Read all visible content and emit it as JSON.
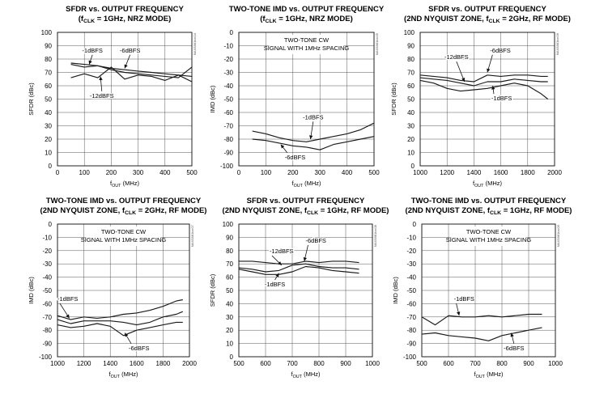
{
  "chart_data": [
    {
      "type": "line",
      "title_lines": [
        "SFDR vs. OUTPUT FREQUENCY",
        "(fCLK = 1GHz, NRZ MODE)"
      ],
      "xlabel": "fOUT (MHz)",
      "ylabel": "SFDR (dBc)",
      "xlim": [
        0,
        500
      ],
      "ylim": [
        0,
        100
      ],
      "xticks": [
        0,
        100,
        200,
        300,
        400,
        500
      ],
      "yticks": [
        0,
        10,
        20,
        30,
        40,
        50,
        60,
        70,
        80,
        90,
        100
      ],
      "grid": true,
      "side_tag": "MAX5881toc04",
      "note": [],
      "series": [
        {
          "x": [
            50,
            100,
            150,
            200,
            250,
            300,
            350,
            400,
            450,
            500
          ],
          "y": [
            77,
            76,
            75,
            73,
            72,
            71,
            70,
            69,
            68,
            67
          ]
        },
        {
          "x": [
            50,
            100,
            150,
            200,
            250,
            300,
            350,
            400,
            450,
            500
          ],
          "y": [
            76,
            74,
            75,
            72,
            70,
            69,
            68,
            67,
            66,
            74
          ]
        },
        {
          "x": [
            50,
            100,
            150,
            200,
            250,
            300,
            350,
            400,
            450,
            500
          ],
          "y": [
            66,
            69,
            66,
            74,
            65,
            68,
            67,
            64,
            68,
            63
          ]
        }
      ],
      "annotations": [
        {
          "text": "-1dBFS",
          "x": 130,
          "y": 85,
          "ax": 118,
          "ay": 76,
          "anchor": "middle"
        },
        {
          "text": "-6dBFS",
          "x": 270,
          "y": 85,
          "ax": 250,
          "ay": 73,
          "anchor": "middle"
        },
        {
          "text": "-12dBFS",
          "x": 165,
          "y": 51,
          "ax": 160,
          "ay": 67,
          "anchor": "middle"
        }
      ]
    },
    {
      "type": "line",
      "title_lines": [
        "TWO-TONE IMD vs. OUTPUT FREQUENCY",
        "(fCLK = 1GHz, NRZ MODE)"
      ],
      "xlabel": "fOUT (MHz)",
      "ylabel": "IMD (dBc)",
      "xlim": [
        0,
        500
      ],
      "ylim": [
        -100,
        0
      ],
      "xticks": [
        0,
        100,
        200,
        300,
        400,
        500
      ],
      "yticks": [
        0,
        -10,
        -20,
        -30,
        -40,
        -50,
        -60,
        -70,
        -80,
        -90,
        -100
      ],
      "grid": true,
      "side_tag": "MAX5881toc05",
      "note": [
        "TWO-TONE CW",
        "SIGNAL WITH 1MHz SPACING"
      ],
      "series": [
        {
          "x": [
            50,
            100,
            150,
            200,
            250,
            300,
            350,
            400,
            450,
            500
          ],
          "y": [
            -74,
            -76,
            -79,
            -81,
            -82,
            -80,
            -78,
            -76,
            -73,
            -68
          ]
        },
        {
          "x": [
            50,
            100,
            150,
            200,
            250,
            300,
            350,
            400,
            450,
            500
          ],
          "y": [
            -80,
            -81,
            -83,
            -85,
            -86,
            -88,
            -84,
            -82,
            -80,
            -78
          ]
        }
      ],
      "annotations": [
        {
          "text": "-1dBFS",
          "x": 275,
          "y": -65,
          "ax": 265,
          "ay": -80,
          "anchor": "middle"
        },
        {
          "text": "-6dBFS",
          "x": 170,
          "y": -95,
          "ax": 155,
          "ay": -84,
          "anchor": "start"
        }
      ]
    },
    {
      "type": "line",
      "title_lines": [
        "SFDR vs. OUTPUT FREQUENCY",
        "(2ND NYQUIST ZONE, fCLK = 2GHz, RF MODE)"
      ],
      "xlabel": "fOUT (MHz)",
      "ylabel": "SFDR (dBc)",
      "xlim": [
        1000,
        2000
      ],
      "ylim": [
        0,
        100
      ],
      "xticks": [
        1000,
        1200,
        1400,
        1600,
        1800,
        2000
      ],
      "yticks": [
        0,
        10,
        20,
        30,
        40,
        50,
        60,
        70,
        80,
        90,
        100
      ],
      "grid": true,
      "side_tag": "MAX5881toc06",
      "note": [],
      "series": [
        {
          "x": [
            1000,
            1100,
            1200,
            1300,
            1400,
            1500,
            1600,
            1700,
            1800,
            1900,
            1950
          ],
          "y": [
            68,
            67,
            66,
            64,
            63,
            68,
            67,
            68,
            68,
            67,
            67
          ]
        },
        {
          "x": [
            1000,
            1100,
            1200,
            1300,
            1400,
            1500,
            1600,
            1700,
            1800,
            1900,
            1950
          ],
          "y": [
            66,
            65,
            64,
            62,
            60,
            63,
            63,
            65,
            64,
            63,
            63
          ]
        },
        {
          "x": [
            1000,
            1100,
            1200,
            1300,
            1400,
            1500,
            1600,
            1700,
            1800,
            1900,
            1950
          ],
          "y": [
            64,
            62,
            58,
            56,
            57,
            58,
            60,
            62,
            60,
            54,
            50
          ]
        }
      ],
      "annotations": [
        {
          "text": "-12dBFS",
          "x": 1270,
          "y": 80,
          "ax": 1330,
          "ay": 63,
          "anchor": "middle"
        },
        {
          "text": "-6dBFS",
          "x": 1520,
          "y": 85,
          "ax": 1500,
          "ay": 70,
          "anchor": "start"
        },
        {
          "text": "-1dBFS",
          "x": 1530,
          "y": 49,
          "ax": 1540,
          "ay": 60,
          "anchor": "start"
        }
      ]
    },
    {
      "type": "line",
      "title_lines": [
        "TWO-TONE IMD vs. OUTPUT FREQUENCY",
        "(2ND NYQUIST ZONE, fCLK = 2GHz, RF MODE)"
      ],
      "xlabel": "fOUT (MHz)",
      "ylabel": "IMD (dBc)",
      "xlim": [
        1000,
        2000
      ],
      "ylim": [
        -100,
        0
      ],
      "xticks": [
        1000,
        1200,
        1400,
        1600,
        1800,
        2000
      ],
      "yticks": [
        0,
        -10,
        -20,
        -30,
        -40,
        -50,
        -60,
        -70,
        -80,
        -90,
        -100
      ],
      "grid": true,
      "side_tag": "MAX5881toc07",
      "note": [
        "TWO-TONE CW",
        "SIGNAL WITH 1MHz SPACING"
      ],
      "series": [
        {
          "x": [
            1000,
            1100,
            1200,
            1300,
            1400,
            1500,
            1600,
            1700,
            1800,
            1900,
            1950
          ],
          "y": [
            -69,
            -72,
            -70,
            -71,
            -70,
            -68,
            -67,
            -65,
            -62,
            -58,
            -57
          ]
        },
        {
          "x": [
            1000,
            1100,
            1200,
            1300,
            1400,
            1500,
            1600,
            1700,
            1800,
            1900,
            1950
          ],
          "y": [
            -72,
            -75,
            -73,
            -73,
            -73,
            -74,
            -76,
            -74,
            -70,
            -68,
            -66
          ]
        },
        {
          "x": [
            1000,
            1100,
            1200,
            1300,
            1400,
            1500,
            1600,
            1700,
            1800,
            1900,
            1950
          ],
          "y": [
            -76,
            -78,
            -77,
            -75,
            -77,
            -84,
            -80,
            -78,
            -76,
            -74,
            -74
          ]
        }
      ],
      "annotations": [
        {
          "text": "-1dBFS",
          "x": 1000,
          "y": -58,
          "ax": 1090,
          "ay": -71,
          "anchor": "start"
        },
        {
          "text": "-6dBFS",
          "x": 1540,
          "y": -95,
          "ax": 1510,
          "ay": -82,
          "anchor": "start"
        }
      ]
    },
    {
      "type": "line",
      "title_lines": [
        "SFDR vs. OUTPUT FREQUENCY",
        "(2ND NYQUIST ZONE, fCLK = 1GHz, RF MODE)"
      ],
      "xlabel": "fOUT (MHz)",
      "ylabel": "SFDR (dBc)",
      "xlim": [
        500,
        1000
      ],
      "ylim": [
        0,
        100
      ],
      "xticks": [
        500,
        600,
        700,
        800,
        900,
        1000
      ],
      "yticks": [
        0,
        10,
        20,
        30,
        40,
        50,
        60,
        70,
        80,
        90,
        100
      ],
      "grid": true,
      "side_tag": "MAX5881toc08",
      "note": [],
      "series": [
        {
          "x": [
            500,
            550,
            600,
            650,
            700,
            750,
            800,
            850,
            900,
            950
          ],
          "y": [
            72,
            72,
            71,
            70,
            70,
            72,
            71,
            72,
            72,
            71
          ]
        },
        {
          "x": [
            500,
            550,
            600,
            650,
            700,
            750,
            800,
            850,
            900,
            950
          ],
          "y": [
            67,
            66,
            64,
            65,
            69,
            70,
            68,
            67,
            67,
            66
          ]
        },
        {
          "x": [
            500,
            550,
            600,
            650,
            700,
            750,
            800,
            850,
            900,
            950
          ],
          "y": [
            66,
            64,
            62,
            62,
            64,
            68,
            67,
            65,
            64,
            63
          ]
        }
      ],
      "annotations": [
        {
          "text": "-6dBFS",
          "x": 750,
          "y": 86,
          "ax": 745,
          "ay": 72,
          "anchor": "start"
        },
        {
          "text": "-12dBFS",
          "x": 615,
          "y": 78,
          "ax": 660,
          "ay": 69,
          "anchor": "start"
        },
        {
          "text": "-1dBFS",
          "x": 635,
          "y": 53,
          "ax": 650,
          "ay": 63,
          "anchor": "middle"
        }
      ]
    },
    {
      "type": "line",
      "title_lines": [
        "TWO-TONE IMD vs. OUTPUT FREQUENCY",
        "(2ND NYQUIST ZONE, fCLK = 1GHz, RF MODE)"
      ],
      "xlabel": "fOUT (MHz)",
      "ylabel": "IMD (dBc)",
      "xlim": [
        500,
        1000
      ],
      "ylim": [
        -100,
        0
      ],
      "xticks": [
        500,
        600,
        700,
        800,
        900,
        1000
      ],
      "yticks": [
        0,
        -10,
        -20,
        -30,
        -40,
        -50,
        -60,
        -70,
        -80,
        -90,
        -100
      ],
      "grid": true,
      "side_tag": "MAX5881toc09",
      "note": [
        "TWO-TONE CW",
        "SIGNAL WITH 1MHz SPACING"
      ],
      "series": [
        {
          "x": [
            500,
            550,
            600,
            650,
            700,
            750,
            800,
            850,
            900,
            950
          ],
          "y": [
            -70,
            -76,
            -69,
            -70,
            -70,
            -69,
            -70,
            -69,
            -68,
            -68
          ]
        },
        {
          "x": [
            500,
            550,
            600,
            650,
            700,
            750,
            800,
            850,
            900,
            950
          ],
          "y": [
            -83,
            -82,
            -84,
            -85,
            -86,
            -88,
            -84,
            -82,
            -80,
            -78
          ]
        }
      ],
      "annotations": [
        {
          "text": "-1dBFS",
          "x": 620,
          "y": -58,
          "ax": 640,
          "ay": -69,
          "anchor": "start"
        },
        {
          "text": "-6dBFS",
          "x": 845,
          "y": -95,
          "ax": 835,
          "ay": -82,
          "anchor": "middle"
        }
      ]
    }
  ]
}
